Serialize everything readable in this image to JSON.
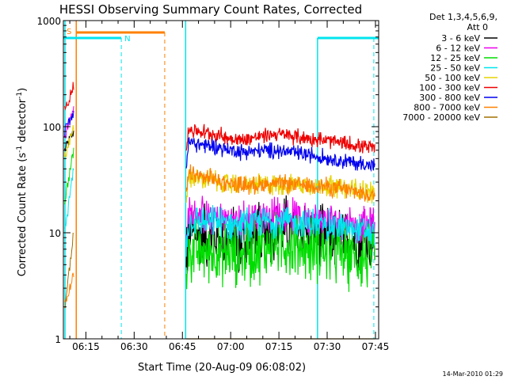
{
  "chart_data": {
    "type": "line",
    "title": "HESSI Observing Summary Count Rates, Corrected",
    "xlabel": "Start Time (20-Aug-09 06:08:02)",
    "ylabel_main": "Corrected Count Rate (s",
    "ylabel_sup1": "-1",
    "ylabel_mid": " detector",
    "ylabel_sup2": "-1",
    "ylabel_end": ")",
    "yscale": "log",
    "ylim": [
      1,
      1000
    ],
    "xlim_min": [
      0,
      98
    ],
    "xticks": [
      {
        "label": "06:15",
        "min": 7
      },
      {
        "label": "06:30",
        "min": 22
      },
      {
        "label": "06:45",
        "min": 37
      },
      {
        "label": "07:00",
        "min": 52
      },
      {
        "label": "07:15",
        "min": 67
      },
      {
        "label": "07:30",
        "min": 82
      },
      {
        "label": "07:45",
        "min": 97
      }
    ],
    "yticks": [
      {
        "label": "1",
        "value": 1
      },
      {
        "label": "10",
        "value": 10
      },
      {
        "label": "100",
        "value": 100
      },
      {
        "label": "1000",
        "value": 1000
      }
    ],
    "legend_header": [
      "Det 1,3,4,5,6,9,",
      "Att 0"
    ],
    "series": [
      {
        "name": "3 - 6 keV",
        "color": "#000000",
        "early": [
          60,
          90
        ],
        "level": [
          10,
          8,
          11,
          9.5,
          7.5
        ],
        "noise": 0.12
      },
      {
        "name": "6 - 12 keV",
        "color": "#ee00ee",
        "early": [
          80,
          150
        ],
        "level": [
          15,
          13,
          15,
          13,
          11.5
        ],
        "noise": 0.07
      },
      {
        "name": "12 - 25 keV",
        "color": "#00dd00",
        "early": [
          20,
          60
        ],
        "level": [
          7,
          6,
          8,
          7,
          5.5
        ],
        "noise": 0.12
      },
      {
        "name": "25 - 50 keV",
        "color": "#00e5ee",
        "early": [
          10,
          40
        ],
        "level": [
          13,
          12,
          13,
          12,
          10
        ],
        "noise": 0.06
      },
      {
        "name": "50 - 100 keV",
        "color": "#e5d400",
        "early": [
          50,
          100
        ],
        "level": [
          34,
          28,
          29,
          28,
          24
        ],
        "noise": 0.04
      },
      {
        "name": "100 - 300 keV",
        "color": "#ee0000",
        "early": [
          140,
          250
        ],
        "level": [
          95,
          75,
          85,
          75,
          62
        ],
        "noise": 0.03
      },
      {
        "name": "300 - 800 keV",
        "color": "#0000ee",
        "early": [
          90,
          140
        ],
        "level": [
          72,
          58,
          60,
          52,
          42
        ],
        "noise": 0.03
      },
      {
        "name": "800 - 7000 keV",
        "color": "#ff8000",
        "early": [
          2,
          4
        ],
        "level": [
          36,
          28,
          29,
          28,
          22
        ],
        "noise": 0.035
      },
      {
        "name": "7000 - 20000 keV",
        "color": "#a07000",
        "early": [
          2,
          10
        ],
        "level": [
          1,
          1,
          1,
          1,
          1
        ],
        "noise": 0.0
      }
    ],
    "annotations": [
      {
        "label": "S",
        "color": "#ff8000"
      },
      {
        "label": "N",
        "color": "#00e5ee"
      }
    ],
    "footer": "14-Mar-2010 01:29"
  }
}
